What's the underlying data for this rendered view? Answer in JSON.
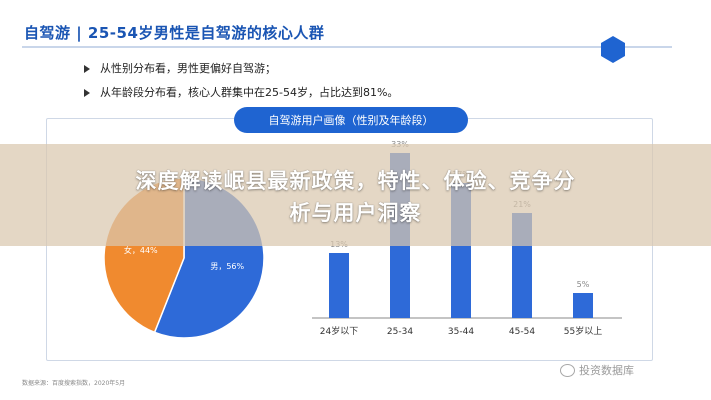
{
  "header": {
    "title": "自驾游 | 25-54岁男性是自驾游的核心人群"
  },
  "bullets": [
    "从性别分布看，男性更偏好自驾游；",
    "从年龄段分布看，核心人群集中在25-54岁，占比达到81%。"
  ],
  "panel": {
    "pill_label": "自驾游用户画像（性别及年龄段）"
  },
  "overlay": {
    "headline_line1": "深度解读岷县最新政策，特性、体验、竞争分",
    "headline_line2": "析与用户洞察"
  },
  "footer": {
    "source": "数据来源：百度搜索指数，2020年5月"
  },
  "watermark": {
    "text": "投资数据库"
  },
  "colors": {
    "blue": "#2e6ad8",
    "orange": "#f08a2f",
    "pill": "#1f64d1",
    "title": "#1a55b3"
  },
  "icons": [
    "hexagon-icon",
    "arrow-bullet-icon",
    "wechat-icon"
  ],
  "chart_data": [
    {
      "type": "pie",
      "slices": [
        {
          "label": "男，56%",
          "value": 56,
          "color": "#2e6ad8"
        },
        {
          "label": "女，44%",
          "value": 44,
          "color": "#f08a2f"
        }
      ]
    },
    {
      "type": "bar",
      "categories": [
        "24岁以下",
        "25-34",
        "35-44",
        "45-54",
        "55岁以上"
      ],
      "values": [
        13,
        33,
        27,
        21,
        5
      ],
      "value_labels": [
        "13%",
        "33%",
        "27%",
        "21%",
        "5%"
      ],
      "color": "#2e6ad8"
    }
  ]
}
